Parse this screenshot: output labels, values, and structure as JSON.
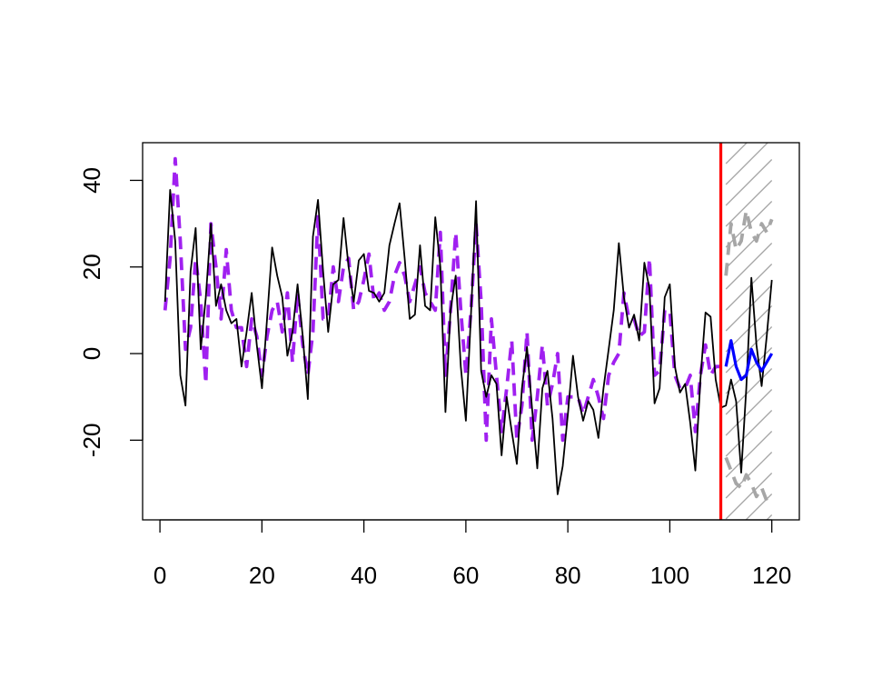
{
  "chart_data": {
    "type": "line",
    "title": "",
    "xlabel": "",
    "ylabel": "",
    "xlim": [
      -3.4,
      125.4
    ],
    "ylim": [
      -38.4,
      48.7
    ],
    "x_ticks": [
      0,
      20,
      40,
      60,
      80,
      100,
      120
    ],
    "y_ticks": [
      -20,
      0,
      20,
      40
    ],
    "grid": false,
    "legend": "none",
    "colors": {
      "observed": "#000000",
      "fitted": "#A020F0",
      "forecast": "#0000FF",
      "interval": "#A6A6A6",
      "cutoff": "#FF0000",
      "hatch": "#A6A6A6"
    },
    "cutoff_x": 110,
    "series": [
      {
        "style": "solid",
        "color": "#000000",
        "x": [
          1,
          2,
          3,
          4,
          5,
          6,
          7,
          8,
          9,
          10,
          11,
          12,
          13,
          14,
          15,
          16,
          17,
          18,
          19,
          20,
          21,
          22,
          23,
          24,
          25,
          26,
          27,
          28,
          29,
          30,
          31,
          32,
          33,
          34,
          35,
          36,
          37,
          38,
          39,
          40,
          41,
          42,
          43,
          44,
          45,
          46,
          47,
          48,
          49,
          50,
          51,
          52,
          53,
          54,
          55,
          56,
          57,
          58,
          59,
          60,
          61,
          62,
          63,
          64,
          65,
          66,
          67,
          68,
          69,
          70,
          71,
          72,
          73,
          74,
          75,
          76,
          77,
          78,
          79,
          80,
          81,
          82,
          83,
          84,
          85,
          86,
          87,
          88,
          89,
          90,
          91,
          92,
          93,
          94,
          95,
          96,
          97,
          98,
          99,
          100,
          101,
          102,
          103,
          104,
          105,
          106,
          107,
          108,
          109,
          110,
          111,
          112,
          113,
          114,
          115,
          116,
          117,
          118,
          119,
          120
        ],
        "values": [
          12,
          37.8,
          26,
          -5,
          -12,
          19,
          29,
          1,
          13,
          30,
          11,
          16,
          10,
          7,
          8,
          -3,
          5,
          14,
          2,
          -8,
          8,
          24.5,
          18,
          13,
          -0.5,
          5,
          16,
          4,
          -10.5,
          27,
          35.5,
          19,
          5,
          16,
          17,
          31.3,
          20,
          12,
          21.5,
          23,
          14.5,
          14,
          12,
          14,
          25,
          30,
          34.7,
          22,
          8,
          9,
          25,
          11,
          10,
          31.5,
          20,
          -13.5,
          10,
          18,
          -3,
          -15.5,
          9,
          35.2,
          -4,
          -10,
          -5,
          -7,
          -23.5,
          -10,
          -18,
          -25.5,
          -8,
          1.5,
          -13,
          -26.5,
          -8,
          -4,
          -15,
          -32.5,
          -26,
          -14,
          -0.5,
          -10,
          -15.5,
          -11,
          -13,
          -19.5,
          -8,
          1,
          10,
          25.5,
          13,
          6,
          9,
          3,
          21,
          15,
          -11.5,
          -8,
          13,
          16,
          -3,
          -9,
          -7,
          -16,
          -27,
          -6,
          9.5,
          8.5,
          -6,
          -12.5,
          -12,
          -6,
          -11,
          -27.5,
          -8,
          17.5,
          2,
          -7.5,
          4,
          17
        ]
      },
      {
        "style": "dashed",
        "color": "#A020F0",
        "x": [
          1,
          2,
          3,
          4,
          5,
          6,
          7,
          8,
          9,
          10,
          11,
          12,
          13,
          14,
          15,
          16,
          17,
          18,
          19,
          20,
          21,
          22,
          23,
          24,
          25,
          26,
          27,
          28,
          29,
          30,
          31,
          32,
          33,
          34,
          35,
          36,
          37,
          38,
          39,
          40,
          41,
          42,
          43,
          44,
          45,
          46,
          47,
          48,
          49,
          50,
          51,
          52,
          53,
          54,
          55,
          56,
          57,
          58,
          59,
          60,
          61,
          62,
          63,
          64,
          65,
          66,
          67,
          68,
          69,
          70,
          71,
          72,
          73,
          74,
          75,
          76,
          77,
          78,
          79,
          80,
          81,
          82,
          83,
          84,
          85,
          86,
          87,
          88,
          89,
          90,
          91,
          92,
          93,
          94,
          95,
          96,
          97,
          98,
          99,
          100,
          101,
          102,
          103,
          104,
          105,
          106,
          107,
          108,
          109,
          110
        ],
        "values": [
          10,
          22,
          45,
          26,
          1,
          6,
          22,
          12,
          -7,
          30,
          20,
          8,
          24,
          10,
          6,
          6,
          -3,
          8,
          4,
          -5,
          4,
          10,
          12,
          5,
          14,
          -2,
          14,
          2,
          -5,
          5,
          32,
          8,
          8,
          20,
          12,
          20,
          22,
          10,
          12,
          17,
          23,
          12,
          14,
          10,
          12,
          18,
          21,
          18,
          12,
          16,
          20,
          14,
          12,
          10,
          28,
          -5,
          10,
          28,
          10,
          -5,
          10,
          30,
          12,
          -20,
          8,
          -5,
          -18,
          -8,
          3,
          -20,
          -12,
          5,
          -20,
          -10,
          2,
          -12,
          -7,
          0,
          -20,
          -10,
          -10,
          -10,
          -14,
          -10,
          -6,
          -10,
          -15,
          -5,
          -2,
          0,
          14,
          8,
          8,
          4,
          5,
          22,
          -5,
          -4,
          10,
          10,
          -5,
          -8,
          -8,
          -5,
          -18,
          -5,
          2,
          -5,
          -3,
          -3
        ]
      },
      {
        "style": "solid",
        "color": "#0000FF",
        "x": [
          111,
          112,
          113,
          114,
          115,
          116,
          117,
          118,
          119,
          120
        ],
        "values": [
          -3,
          3,
          -3,
          -6,
          -5,
          1,
          -2,
          -4,
          -2,
          0
        ]
      },
      {
        "style": "dashed",
        "color": "#A6A6A6",
        "x": [
          111,
          112,
          113,
          114,
          115,
          116,
          117,
          118,
          119,
          120
        ],
        "values": [
          18,
          30,
          24,
          26,
          33,
          28,
          26,
          30,
          28,
          31
        ]
      },
      {
        "style": "dashed",
        "color": "#A6A6A6",
        "x": [
          111,
          112,
          113,
          114,
          115,
          116,
          117,
          118,
          119,
          120
        ],
        "values": [
          -24,
          -27,
          -30,
          -31,
          -28,
          -30,
          -33,
          -31,
          -34,
          -33
        ]
      }
    ]
  }
}
